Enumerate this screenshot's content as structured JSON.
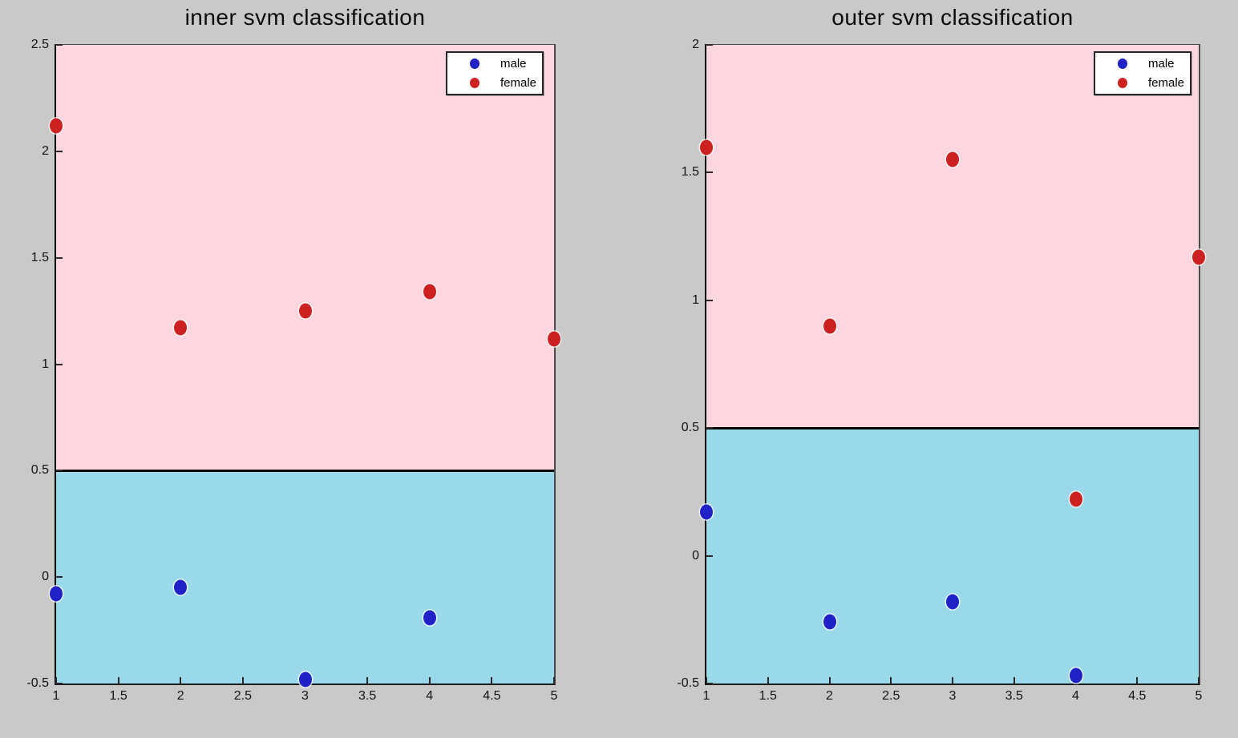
{
  "figure": {
    "background_color": "#c9c9c9",
    "text_color": "#0a0a0a"
  },
  "chart_data": [
    {
      "type": "scatter",
      "title": "inner svm classification",
      "xlabel": "",
      "ylabel": "",
      "xlim": [
        1,
        5
      ],
      "ylim": [
        -0.5,
        2.5
      ],
      "xtick_labels": [
        "1",
        "1.5",
        "2",
        "2.5",
        "3",
        "3.5",
        "4",
        "4.5",
        "5"
      ],
      "ytick_labels": [
        "-0.5",
        "0",
        "0.5",
        "1",
        "1.5",
        "2",
        "2.5"
      ],
      "grid": false,
      "legend_position": "top-right",
      "decision_boundary_y": 0.5,
      "boundary_color": "#000000",
      "region_above": {
        "meaning": "female-classified region",
        "color": "#ffd6df"
      },
      "region_below": {
        "meaning": "male-classified region",
        "color": "#9ad9e9"
      },
      "series": [
        {
          "name": "male",
          "color": "#2121c8",
          "points": [
            [
              1,
              -0.08
            ],
            [
              2,
              -0.05
            ],
            [
              3,
              -0.48
            ],
            [
              4,
              -0.19
            ]
          ]
        },
        {
          "name": "female",
          "color": "#cd2020",
          "points": [
            [
              1,
              2.12
            ],
            [
              2,
              1.17
            ],
            [
              3,
              1.25
            ],
            [
              4,
              1.34
            ],
            [
              5,
              1.12
            ]
          ]
        }
      ]
    },
    {
      "type": "scatter",
      "title": "outer svm classification",
      "xlabel": "",
      "ylabel": "",
      "xlim": [
        1,
        5
      ],
      "ylim": [
        -0.5,
        2
      ],
      "xtick_labels": [
        "1",
        "1.5",
        "2",
        "2.5",
        "3",
        "3.5",
        "4",
        "4.5",
        "5"
      ],
      "ytick_labels": [
        "-0.5",
        "0",
        "0.5",
        "1",
        "1.5",
        "2"
      ],
      "grid": false,
      "legend_position": "top-right",
      "decision_boundary_y": 0.5,
      "boundary_color": "#000000",
      "region_above": {
        "meaning": "female-classified region",
        "color": "#ffd6df"
      },
      "region_below": {
        "meaning": "male-classified region",
        "color": "#9ad9e9"
      },
      "series": [
        {
          "name": "male",
          "color": "#2121c8",
          "points": [
            [
              1,
              0.17
            ],
            [
              2,
              -0.26
            ],
            [
              3,
              -0.18
            ],
            [
              4,
              -0.47
            ]
          ]
        },
        {
          "name": "female",
          "color": "#cd2020",
          "points": [
            [
              1,
              1.6
            ],
            [
              2,
              0.9
            ],
            [
              3,
              1.55
            ],
            [
              4,
              0.22
            ],
            [
              5,
              1.17
            ]
          ]
        }
      ]
    }
  ]
}
